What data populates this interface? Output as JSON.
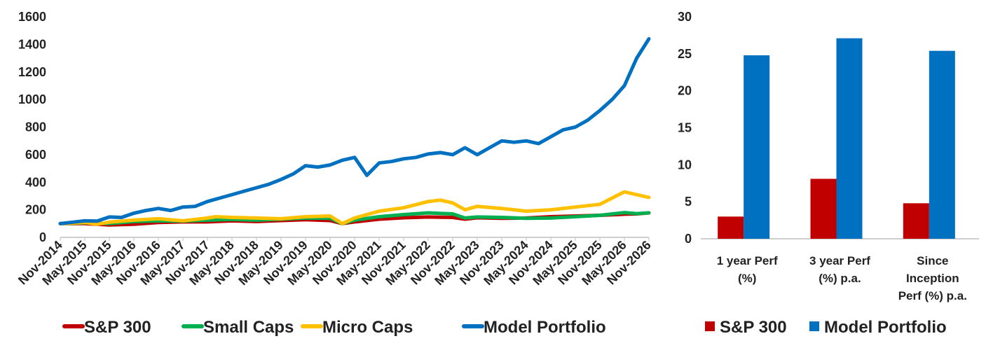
{
  "chart_data": [
    {
      "type": "line",
      "title": "",
      "xlabel": "",
      "ylabel": "",
      "ylim": [
        0,
        1600
      ],
      "y_ticks": [
        "0",
        "200",
        "400",
        "600",
        "800",
        "1000",
        "1200",
        "1400",
        "1600"
      ],
      "x_tick_labels": [
        "Nov-2014",
        "May-2015",
        "Nov-2015",
        "May-2016",
        "Nov-2016",
        "May-2017",
        "Nov-2017",
        "May-2018",
        "Nov-2018",
        "May-2019",
        "Nov-2019",
        "May-2020",
        "Nov-2020",
        "May-2021",
        "Nov-2021",
        "May-2022",
        "Nov-2022",
        "May-2023",
        "Nov-2023",
        "May-2024",
        "Nov-2024",
        "May-2025",
        "Nov-2025",
        "May-2026",
        "Nov-2026"
      ],
      "x_months_range": [
        0,
        144
      ],
      "grid": false,
      "legend_position": "bottom",
      "series": [
        {
          "name": "S&P 300",
          "color": "#c00000",
          "points": [
            [
              0,
              100
            ],
            [
              6,
              100
            ],
            [
              12,
              90
            ],
            [
              18,
              95
            ],
            [
              24,
              108
            ],
            [
              30,
              112
            ],
            [
              36,
              112
            ],
            [
              42,
              120
            ],
            [
              48,
              115
            ],
            [
              54,
              122
            ],
            [
              60,
              128
            ],
            [
              66,
              122
            ],
            [
              69,
              100
            ],
            [
              72,
              112
            ],
            [
              78,
              132
            ],
            [
              84,
              142
            ],
            [
              90,
              148
            ],
            [
              96,
              145
            ],
            [
              99,
              132
            ],
            [
              102,
              142
            ],
            [
              108,
              138
            ],
            [
              114,
              140
            ],
            [
              120,
              150
            ],
            [
              126,
              155
            ],
            [
              132,
              160
            ],
            [
              138,
              168
            ],
            [
              141,
              170
            ],
            [
              144,
              178
            ]
          ]
        },
        {
          "name": "Small Caps",
          "color": "#00b050",
          "points": [
            [
              0,
              100
            ],
            [
              6,
              105
            ],
            [
              12,
              100
            ],
            [
              18,
              115
            ],
            [
              24,
              120
            ],
            [
              30,
              118
            ],
            [
              36,
              125
            ],
            [
              42,
              130
            ],
            [
              48,
              125
            ],
            [
              54,
              132
            ],
            [
              60,
              140
            ],
            [
              66,
              138
            ],
            [
              69,
              100
            ],
            [
              72,
              125
            ],
            [
              78,
              150
            ],
            [
              84,
              165
            ],
            [
              90,
              178
            ],
            [
              96,
              170
            ],
            [
              99,
              140
            ],
            [
              102,
              148
            ],
            [
              108,
              145
            ],
            [
              114,
              138
            ],
            [
              120,
              140
            ],
            [
              126,
              150
            ],
            [
              132,
              160
            ],
            [
              138,
              180
            ],
            [
              141,
              172
            ],
            [
              144,
              178
            ]
          ]
        },
        {
          "name": "Micro Caps",
          "color": "#ffc000",
          "points": [
            [
              0,
              100
            ],
            [
              6,
              108
            ],
            [
              9,
              95
            ],
            [
              12,
              110
            ],
            [
              18,
              125
            ],
            [
              24,
              135
            ],
            [
              30,
              120
            ],
            [
              36,
              140
            ],
            [
              38,
              150
            ],
            [
              42,
              145
            ],
            [
              48,
              140
            ],
            [
              54,
              135
            ],
            [
              60,
              150
            ],
            [
              66,
              155
            ],
            [
              69,
              100
            ],
            [
              72,
              140
            ],
            [
              78,
              190
            ],
            [
              84,
              215
            ],
            [
              90,
              260
            ],
            [
              93,
              270
            ],
            [
              96,
              250
            ],
            [
              99,
              200
            ],
            [
              102,
              225
            ],
            [
              108,
              210
            ],
            [
              114,
              190
            ],
            [
              120,
              200
            ],
            [
              126,
              220
            ],
            [
              132,
              240
            ],
            [
              136,
              300
            ],
            [
              138,
              330
            ],
            [
              141,
              310
            ],
            [
              144,
              290
            ]
          ]
        },
        {
          "name": "Model Portfolio",
          "color": "#0070c0",
          "points": [
            [
              0,
              100
            ],
            [
              6,
              120
            ],
            [
              9,
              118
            ],
            [
              12,
              148
            ],
            [
              15,
              145
            ],
            [
              18,
              175
            ],
            [
              21,
              195
            ],
            [
              24,
              210
            ],
            [
              27,
              195
            ],
            [
              30,
              220
            ],
            [
              33,
              225
            ],
            [
              36,
              260
            ],
            [
              39,
              285
            ],
            [
              42,
              310
            ],
            [
              45,
              335
            ],
            [
              48,
              360
            ],
            [
              51,
              385
            ],
            [
              54,
              420
            ],
            [
              57,
              460
            ],
            [
              60,
              520
            ],
            [
              63,
              510
            ],
            [
              66,
              525
            ],
            [
              69,
              560
            ],
            [
              72,
              580
            ],
            [
              75,
              450
            ],
            [
              78,
              540
            ],
            [
              81,
              550
            ],
            [
              84,
              570
            ],
            [
              87,
              580
            ],
            [
              90,
              605
            ],
            [
              93,
              615
            ],
            [
              96,
              600
            ],
            [
              99,
              650
            ],
            [
              102,
              600
            ],
            [
              105,
              650
            ],
            [
              108,
              700
            ],
            [
              111,
              690
            ],
            [
              114,
              700
            ],
            [
              117,
              680
            ],
            [
              120,
              730
            ],
            [
              123,
              780
            ],
            [
              126,
              800
            ],
            [
              129,
              850
            ],
            [
              132,
              920
            ],
            [
              135,
              1000
            ],
            [
              138,
              1100
            ],
            [
              141,
              1300
            ],
            [
              144,
              1440
            ]
          ]
        }
      ]
    },
    {
      "type": "bar",
      "title": "",
      "xlabel": "",
      "ylabel": "",
      "ylim": [
        0,
        30
      ],
      "y_ticks": [
        "0",
        "5",
        "10",
        "15",
        "20",
        "25",
        "30"
      ],
      "categories": [
        [
          "1 year Perf",
          "(%)"
        ],
        [
          "3 year Perf",
          "(%) p.a."
        ],
        [
          "Since",
          "Inception",
          "Perf (%) p.a."
        ]
      ],
      "grid": false,
      "legend_position": "bottom",
      "series": [
        {
          "name": "S&P 300",
          "color": "#c00000",
          "values": [
            3.0,
            8.1,
            4.8
          ]
        },
        {
          "name": "Model Portfolio",
          "color": "#0070c0",
          "values": [
            24.8,
            27.1,
            25.4
          ]
        }
      ]
    }
  ]
}
